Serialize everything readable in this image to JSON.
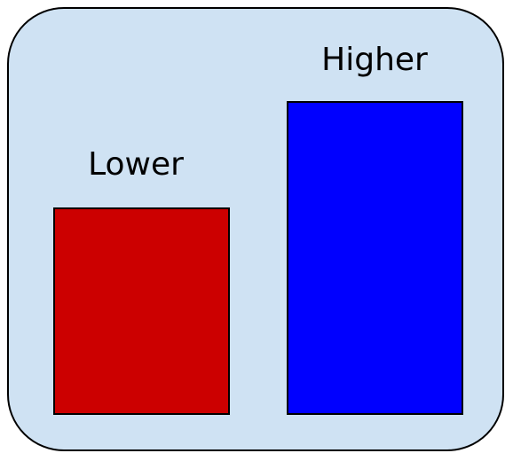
{
  "bars": [
    {
      "label": "Lower",
      "color": "#cc0000"
    },
    {
      "label": "Higher",
      "color": "#0000ff"
    }
  ],
  "panel": {
    "background": "#cfe2f3",
    "border_color": "#000000"
  }
}
